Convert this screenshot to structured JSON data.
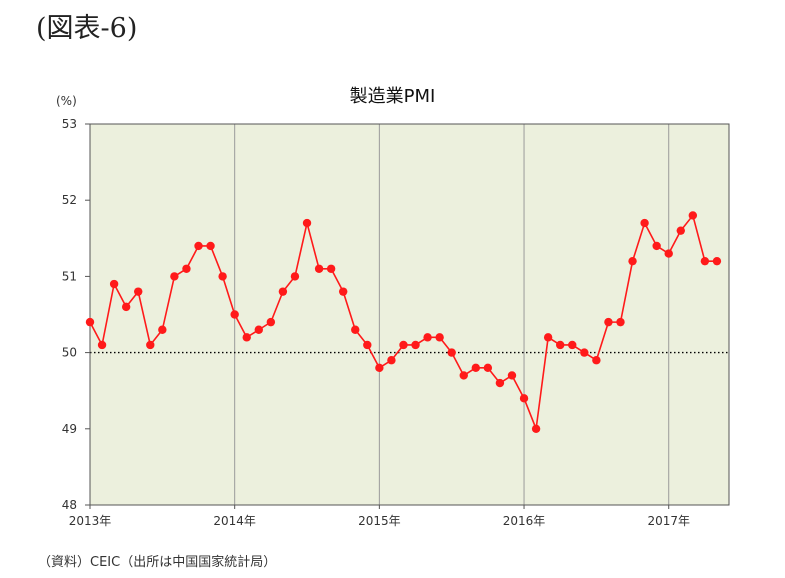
{
  "figure_label": "(図表-6)",
  "source_note": "（資料）CEIC（出所は中国国家統計局）",
  "colors": {
    "plot_background": "#ecf0dd",
    "series_line": "#ff1a1a",
    "marker": "#ff1a1a",
    "gridline": "#9a9a9a",
    "reference_line": "#000000"
  },
  "chart_data": {
    "type": "line",
    "title": "製造業PMI",
    "ylabel": "(%)",
    "xlabel": "",
    "ylim": [
      48,
      53
    ],
    "yticks": [
      48,
      49,
      50,
      51,
      52,
      53
    ],
    "xlim": [
      0,
      53
    ],
    "x_tick_labels": [
      {
        "x": 0,
        "label": "2013年"
      },
      {
        "x": 12,
        "label": "2014年"
      },
      {
        "x": 24,
        "label": "2015年"
      },
      {
        "x": 36,
        "label": "2016年"
      },
      {
        "x": 48,
        "label": "2017年"
      }
    ],
    "reference_line": {
      "y": 50,
      "style": "dotted"
    },
    "grid": {
      "vertical": true,
      "horizontal": false
    },
    "series": [
      {
        "values": [
          50.4,
          50.1,
          50.9,
          50.6,
          50.8,
          50.1,
          50.3,
          51.0,
          51.1,
          51.4,
          51.4,
          51.0,
          50.5,
          50.2,
          50.3,
          50.4,
          50.8,
          51.0,
          51.7,
          51.1,
          51.1,
          50.8,
          50.3,
          50.1,
          49.8,
          49.9,
          50.1,
          50.1,
          50.2,
          50.2,
          50.0,
          49.7,
          49.8,
          49.8,
          49.6,
          49.7,
          49.4,
          49.0,
          50.2,
          50.1,
          50.1,
          50.0,
          49.9,
          50.4,
          50.4,
          51.2,
          51.7,
          51.4,
          51.3,
          51.6,
          51.8,
          51.2,
          51.2
        ]
      }
    ]
  }
}
